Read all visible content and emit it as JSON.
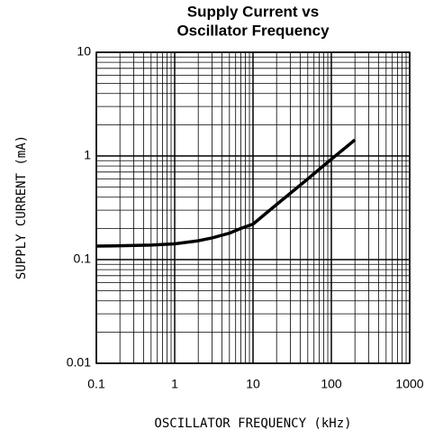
{
  "chart_data": {
    "type": "line",
    "title": [
      "Supply Current vs",
      "Oscillator Frequency"
    ],
    "xlabel": "OSCILLATOR FREQUENCY (kHz)",
    "ylabel": "SUPPLY CURRENT (mA)",
    "xscale": "log",
    "yscale": "log",
    "xlim": [
      0.1,
      1000
    ],
    "ylim": [
      0.01,
      10
    ],
    "xticks": [
      0.1,
      1,
      10,
      100,
      1000
    ],
    "yticks": [
      0.01,
      0.1,
      1,
      10
    ],
    "grid": true,
    "minor_grid": true,
    "series": [
      {
        "color": "#000000",
        "x": [
          0.1,
          0.2,
          0.5,
          1,
          2,
          3,
          5,
          7,
          10,
          20,
          50,
          100,
          200
        ],
        "values": [
          0.135,
          0.136,
          0.138,
          0.142,
          0.152,
          0.162,
          0.18,
          0.2,
          0.22,
          0.34,
          0.6,
          0.93,
          1.43
        ]
      }
    ]
  }
}
